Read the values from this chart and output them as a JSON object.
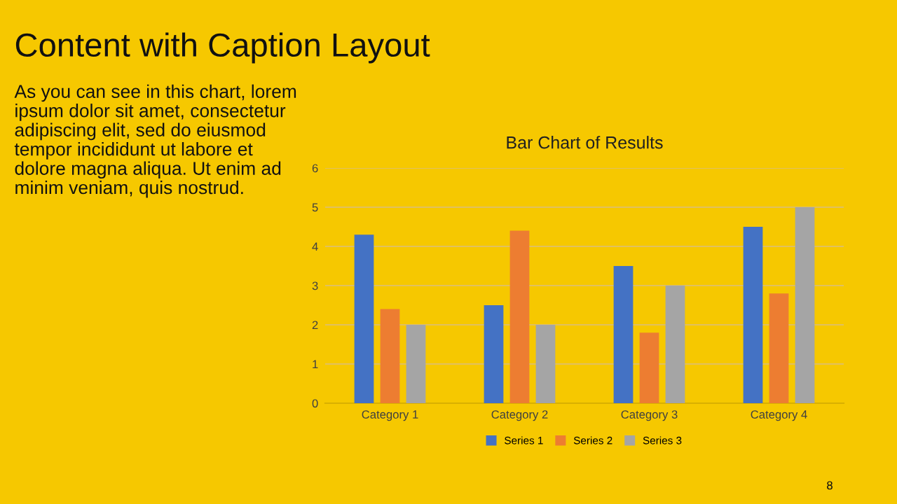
{
  "chart_data": {
    "type": "bar",
    "title": "Bar Chart of Results",
    "categories": [
      "Category 1",
      "Category 2",
      "Category 3",
      "Category 4"
    ],
    "series": [
      {
        "name": "Series 1",
        "color": "#4472c4",
        "values": [
          4.3,
          2.5,
          3.5,
          4.5
        ]
      },
      {
        "name": "Series 2",
        "color": "#ed7d31",
        "values": [
          2.4,
          4.4,
          1.8,
          2.8
        ]
      },
      {
        "name": "Series 3",
        "color": "#a5a5a5",
        "values": [
          2,
          2,
          3,
          5
        ]
      }
    ],
    "ylim": [
      0,
      6
    ],
    "yticks": [
      0,
      1,
      2,
      3,
      4,
      5,
      6
    ],
    "grid": "y",
    "legend": "bottom",
    "annotations": [
      "Content with Caption Layout",
      "As you can see in this chart, lorem\nipsum dolor sit amet, consectetur\nadipiscing elit, sed do eiusmod\ntempor incididunt ut labore et\ndolore magna aliqua. Ut enim ad\nminim veniam, quis nostrud.",
      "8"
    ]
  }
}
